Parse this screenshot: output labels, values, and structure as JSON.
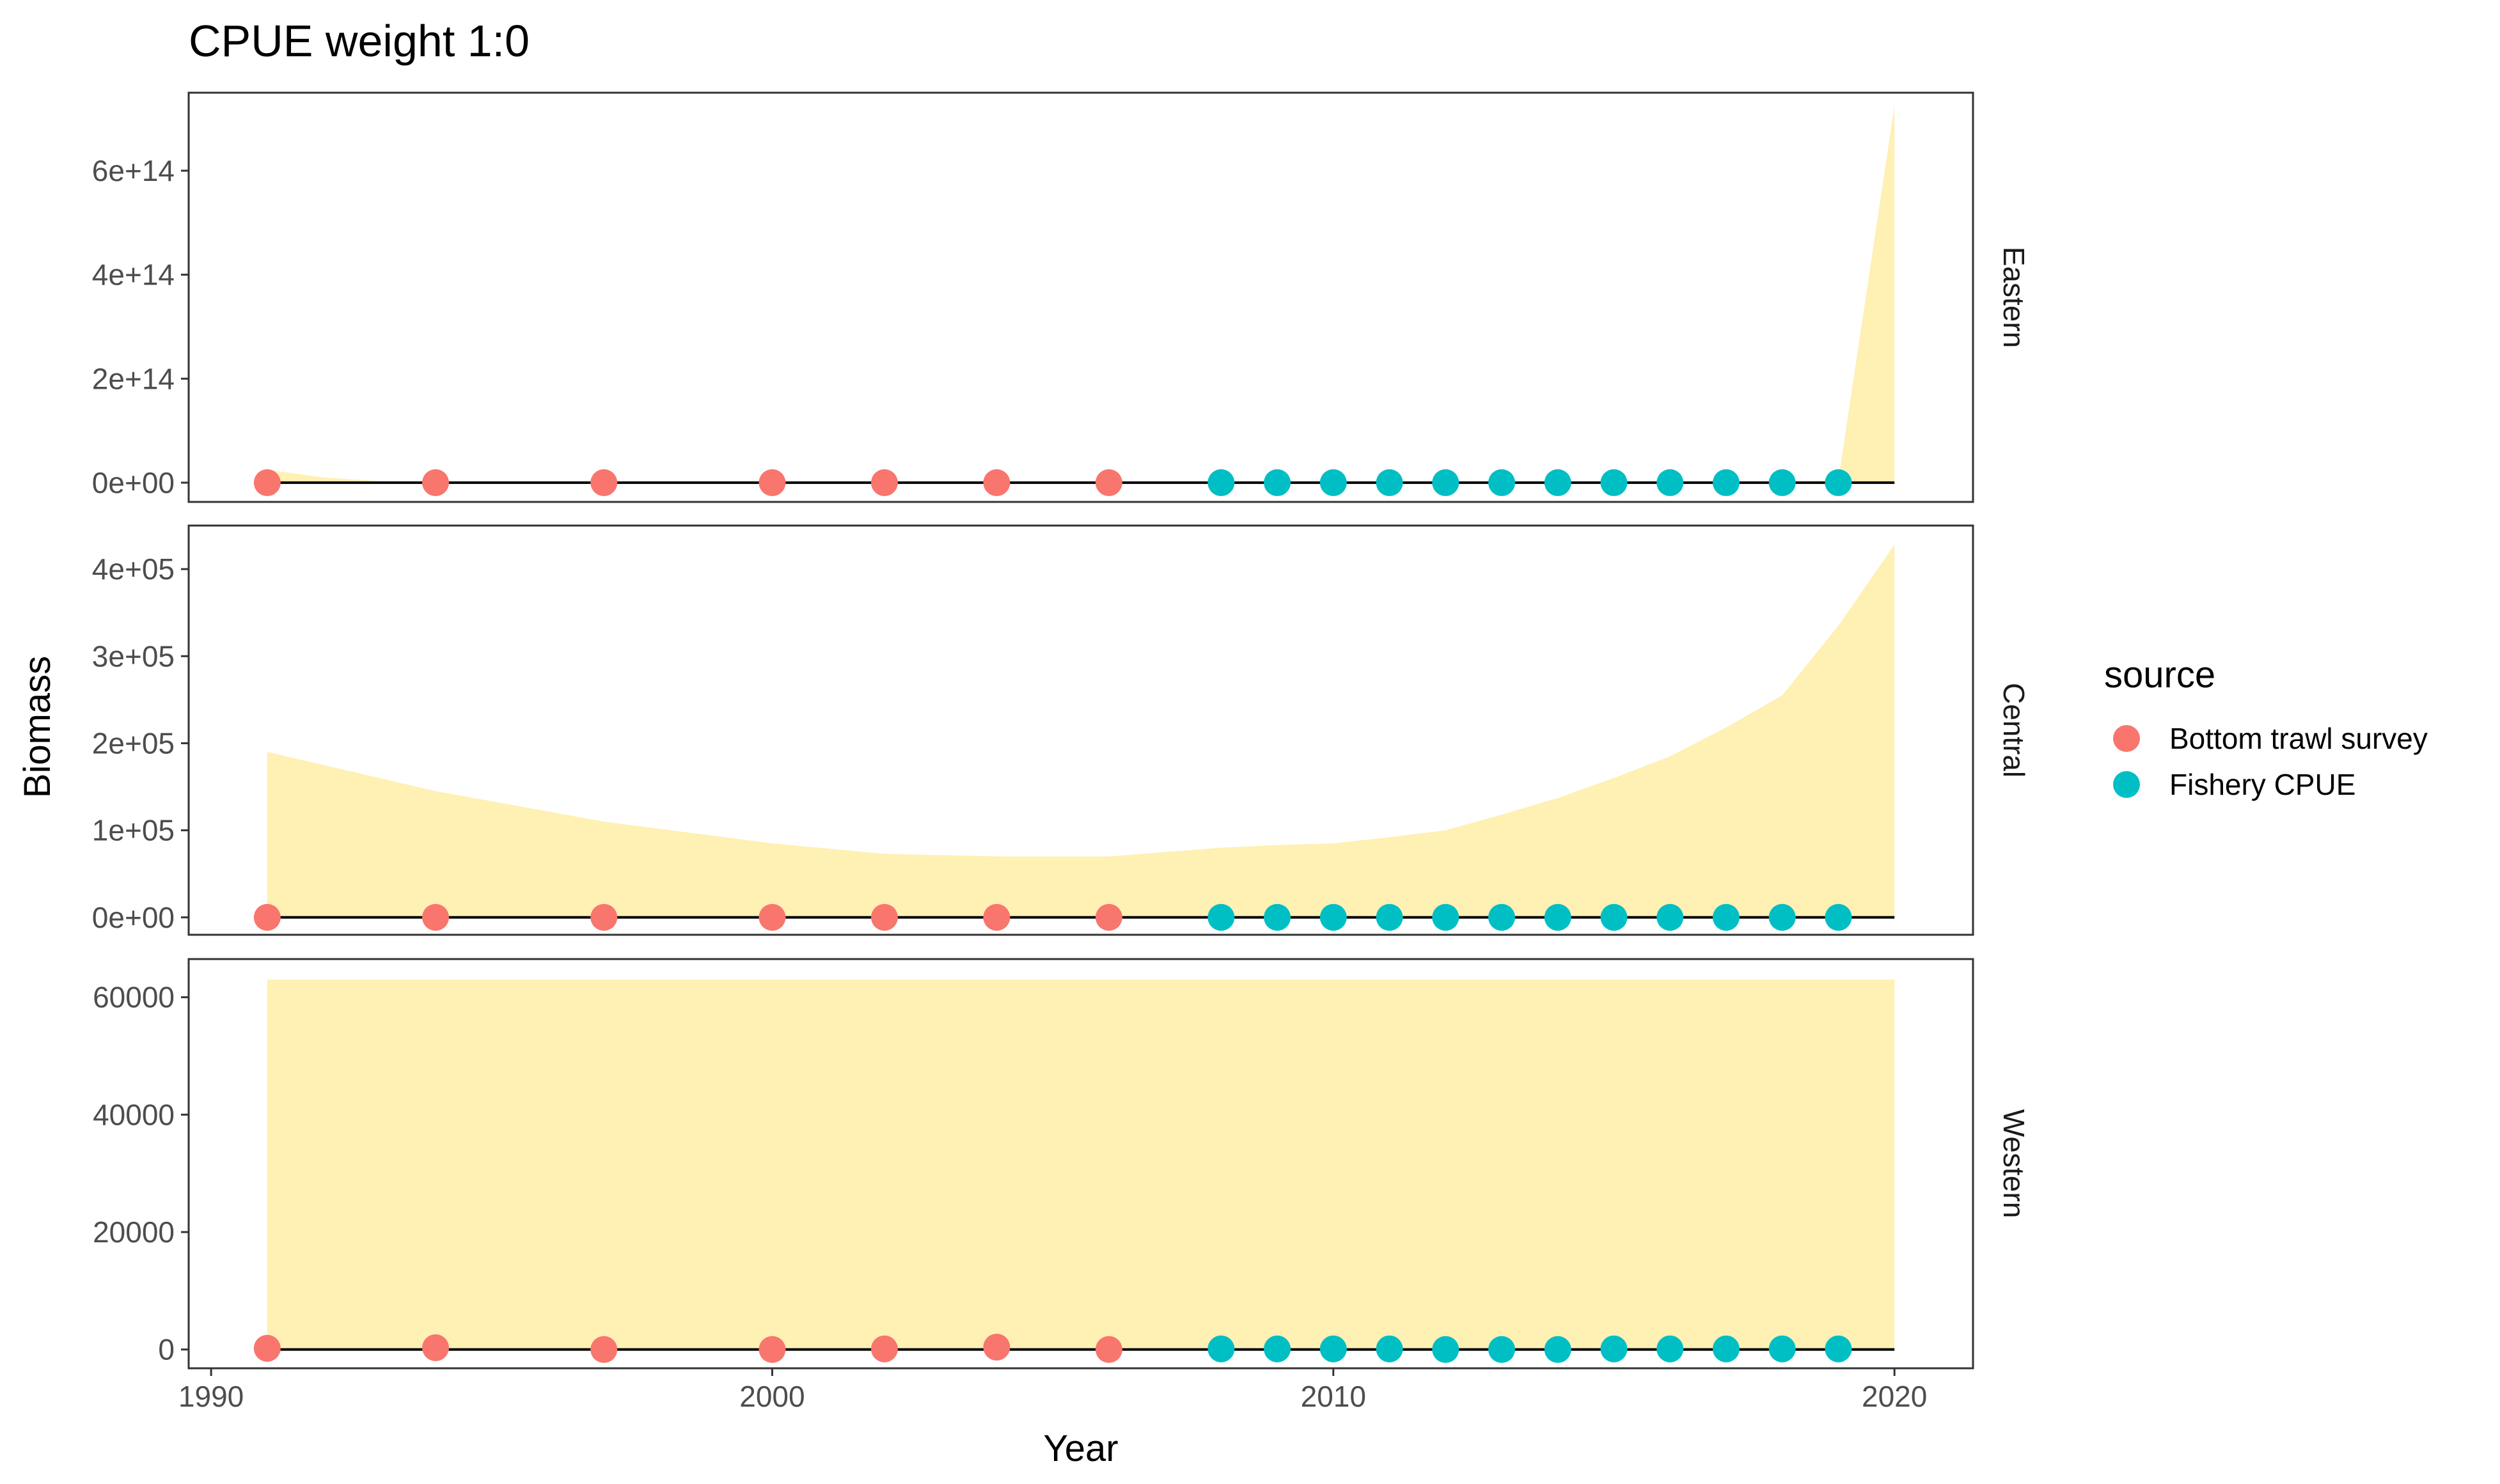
{
  "chart_data": {
    "type": "scatter",
    "title": "CPUE weight 1:0",
    "xlabel": "Year",
    "ylabel": "Biomass",
    "xlim": [
      1989.6,
      2021.4
    ],
    "x_ticks": [
      "1990",
      "2000",
      "2010",
      "2020"
    ],
    "x_tick_values": [
      1990,
      2000,
      2010,
      2020
    ],
    "legend": {
      "title": "source",
      "placement": "right",
      "entries": [
        {
          "label": "Bottom trawl survey",
          "color": "#F8766D"
        },
        {
          "label": "Fishery CPUE",
          "color": "#00BFC4"
        }
      ]
    },
    "ribbon_color": "#FFF0B3",
    "line_color": "#000000",
    "grid": false,
    "panels": [
      {
        "facet": "Eastern",
        "ylim": [
          -37000000000000.0,
          750000000000000.0
        ],
        "y_ticks": [
          "0e+00",
          "2e+14",
          "4e+14",
          "6e+14"
        ],
        "y_tick_values": [
          0,
          200000000000000.0,
          400000000000000.0,
          600000000000000.0
        ],
        "ribbon": {
          "x": [
            1991,
            1992,
            1993,
            1994,
            1997,
            2000,
            2002,
            2004,
            2006,
            2008,
            2009,
            2010,
            2011,
            2012,
            2013,
            2014,
            2015,
            2016,
            2017,
            2018,
            2019,
            2020
          ],
          "upper": [
            25000000000000.0,
            10000000000000.0,
            3000000000000.0,
            1000000000000.0,
            0,
            0,
            0,
            0,
            0,
            0,
            0,
            0,
            0,
            0,
            0,
            0,
            0,
            0,
            0,
            1000000000000.0,
            5000000000000.0,
            725000000000000.0
          ]
        },
        "survey_points": {
          "x": [
            1991,
            1994,
            1997,
            2000,
            2002,
            2004,
            2006
          ],
          "y": [
            0,
            0,
            0,
            0,
            0,
            0,
            0
          ]
        },
        "cpue_points": {
          "x": [
            2008,
            2009,
            2010,
            2011,
            2012,
            2013,
            2014,
            2015,
            2016,
            2017,
            2018,
            2019
          ],
          "y": [
            0,
            0,
            0,
            0,
            0,
            0,
            0,
            0,
            0,
            0,
            0,
            0
          ]
        }
      },
      {
        "facet": "Central",
        "ylim": [
          -20000,
          450000
        ],
        "y_ticks": [
          "0e+00",
          "1e+05",
          "2e+05",
          "3e+05",
          "4e+05"
        ],
        "y_tick_values": [
          0,
          100000,
          200000,
          300000,
          400000
        ],
        "ribbon": {
          "x": [
            1991,
            1994,
            1997,
            2000,
            2002,
            2004,
            2006,
            2008,
            2009,
            2010,
            2011,
            2012,
            2013,
            2014,
            2015,
            2016,
            2017,
            2018,
            2019,
            2020
          ],
          "upper": [
            190000,
            145000,
            110000,
            85000,
            73000,
            70000,
            70000,
            80000,
            83000,
            85000,
            92000,
            100000,
            118000,
            137000,
            160000,
            185000,
            218000,
            255000,
            335000,
            428000
          ]
        },
        "survey_points": {
          "x": [
            1991,
            1994,
            1997,
            2000,
            2002,
            2004,
            2006
          ],
          "y": [
            0,
            0,
            0,
            0,
            0,
            0,
            0
          ]
        },
        "cpue_points": {
          "x": [
            2008,
            2009,
            2010,
            2011,
            2012,
            2013,
            2014,
            2015,
            2016,
            2017,
            2018,
            2019
          ],
          "y": [
            0,
            0,
            0,
            0,
            0,
            0,
            0,
            0,
            0,
            0,
            0,
            0
          ]
        }
      },
      {
        "facet": "Western",
        "ylim": [
          -3200,
          66500
        ],
        "y_ticks": [
          "0",
          "20000",
          "40000",
          "60000"
        ],
        "y_tick_values": [
          0,
          20000,
          40000,
          60000
        ],
        "ribbon": {
          "x": [
            1991,
            2020
          ],
          "upper": [
            63000,
            63000
          ]
        },
        "survey_points": {
          "x": [
            1991,
            1994,
            1997,
            2000,
            2002,
            2004,
            2006
          ],
          "y": [
            200,
            300,
            0,
            0,
            100,
            400,
            0
          ]
        },
        "cpue_points": {
          "x": [
            2008,
            2009,
            2010,
            2011,
            2012,
            2013,
            2014,
            2015,
            2016,
            2017,
            2018,
            2019
          ],
          "y": [
            100,
            100,
            100,
            100,
            0,
            0,
            0,
            100,
            100,
            100,
            100,
            100
          ]
        }
      }
    ]
  }
}
